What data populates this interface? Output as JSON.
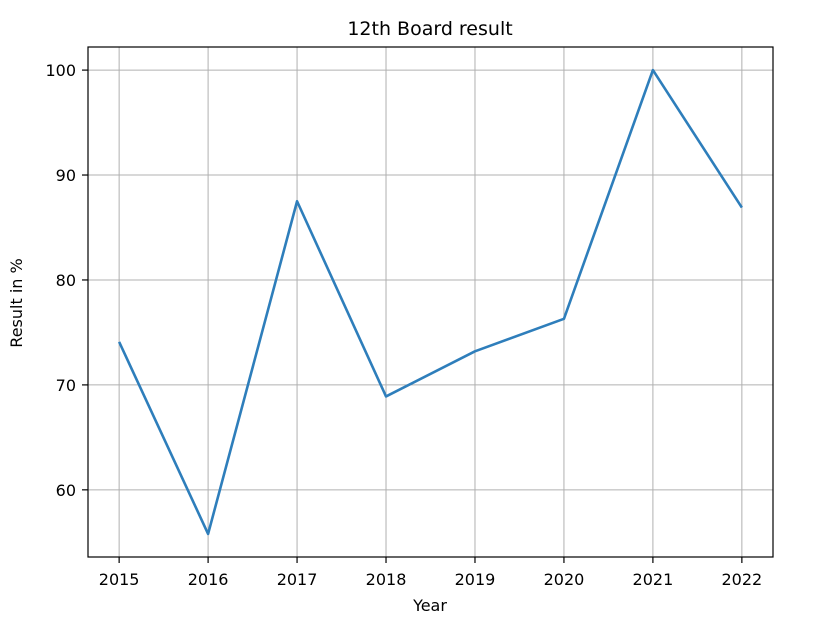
{
  "chart_data": {
    "type": "line",
    "title": "12th Board result",
    "xlabel": "Year",
    "ylabel": "Result in %",
    "x": [
      2015,
      2016,
      2017,
      2018,
      2019,
      2020,
      2021,
      2022
    ],
    "x_tick_labels": [
      "2015",
      "2016",
      "2017",
      "2018",
      "2019",
      "2020",
      "2021",
      "2022"
    ],
    "series": [
      {
        "values": [
          74.1,
          55.8,
          87.5,
          68.9,
          73.2,
          76.3,
          100.0,
          86.9
        ]
      }
    ],
    "y_ticks": [
      60,
      70,
      80,
      90,
      100
    ],
    "y_tick_labels": [
      "60",
      "70",
      "80",
      "90",
      "100"
    ],
    "xlim": [
      2014.65,
      2022.35
    ],
    "ylim": [
      53.6,
      102.2
    ],
    "grid": true,
    "legend": "none",
    "colors": {
      "line": "#2e7ebb",
      "grid": "#b0b0b0",
      "axes": "#000000",
      "background": "#ffffff"
    }
  }
}
